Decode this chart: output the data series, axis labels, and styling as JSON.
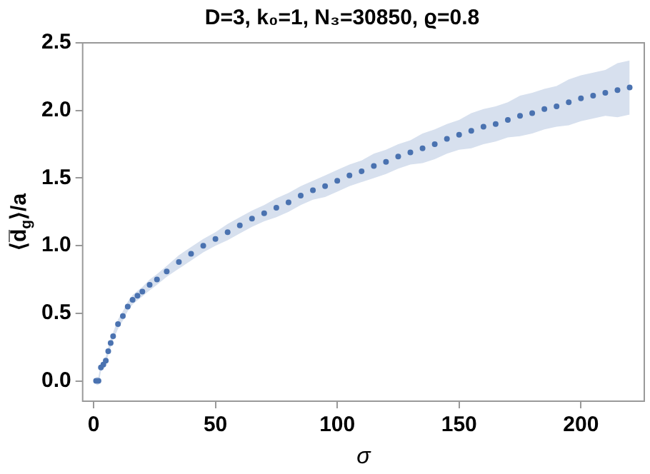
{
  "chart_data": {
    "type": "scatter",
    "title": "D=3, k₀=1, N₃=30850, ϱ=0.8",
    "xlabel": "σ",
    "ylabel": "⟨d̅$_{g}$⟩/a",
    "x": [
      1,
      2,
      3,
      4,
      5,
      6,
      7,
      8,
      10,
      12,
      14,
      16,
      18,
      20,
      23,
      26,
      30,
      35,
      40,
      45,
      50,
      55,
      60,
      65,
      70,
      75,
      80,
      85,
      90,
      95,
      100,
      105,
      110,
      115,
      120,
      125,
      130,
      135,
      140,
      145,
      150,
      155,
      160,
      165,
      170,
      175,
      180,
      185,
      190,
      195,
      200,
      205,
      210,
      215,
      220
    ],
    "series": [
      {
        "color": "#4a72b0",
        "values": [
          0,
          0,
          0.1,
          0.12,
          0.15,
          0.22,
          0.28,
          0.33,
          0.42,
          0.48,
          0.55,
          0.6,
          0.63,
          0.66,
          0.71,
          0.75,
          0.81,
          0.88,
          0.94,
          1.0,
          1.05,
          1.1,
          1.15,
          1.2,
          1.24,
          1.28,
          1.32,
          1.37,
          1.41,
          1.44,
          1.48,
          1.52,
          1.55,
          1.59,
          1.62,
          1.66,
          1.69,
          1.72,
          1.75,
          1.79,
          1.82,
          1.85,
          1.88,
          1.9,
          1.93,
          1.96,
          1.98,
          2.01,
          2.03,
          2.06,
          2.09,
          2.11,
          2.13,
          2.15,
          2.17
        ],
        "lower": [
          -0.03,
          -0.03,
          0.07,
          0.09,
          0.12,
          0.19,
          0.25,
          0.3,
          0.385,
          0.445,
          0.515,
          0.565,
          0.595,
          0.625,
          0.67,
          0.71,
          0.77,
          0.83,
          0.89,
          0.95,
          1.0,
          1.04,
          1.09,
          1.14,
          1.18,
          1.21,
          1.25,
          1.3,
          1.34,
          1.36,
          1.4,
          1.44,
          1.47,
          1.5,
          1.53,
          1.57,
          1.6,
          1.61,
          1.64,
          1.68,
          1.71,
          1.72,
          1.75,
          1.77,
          1.8,
          1.81,
          1.83,
          1.86,
          1.88,
          1.89,
          1.92,
          1.94,
          1.96,
          1.95,
          1.97
        ],
        "upper": [
          0.03,
          0.03,
          0.13,
          0.15,
          0.18,
          0.25,
          0.31,
          0.36,
          0.455,
          0.515,
          0.585,
          0.635,
          0.665,
          0.695,
          0.75,
          0.79,
          0.85,
          0.93,
          0.99,
          1.05,
          1.1,
          1.16,
          1.21,
          1.26,
          1.3,
          1.35,
          1.39,
          1.44,
          1.48,
          1.52,
          1.56,
          1.6,
          1.63,
          1.68,
          1.71,
          1.75,
          1.78,
          1.83,
          1.86,
          1.9,
          1.93,
          1.98,
          2.01,
          2.03,
          2.06,
          2.11,
          2.13,
          2.16,
          2.18,
          2.23,
          2.26,
          2.28,
          2.3,
          2.35,
          2.37
        ]
      }
    ],
    "xlim": [
      -4.5,
      226
    ],
    "xticks": [
      0,
      50,
      100,
      150,
      200
    ],
    "ylim": [
      -0.15,
      2.5
    ],
    "yticks": [
      {
        "value": 0,
        "label": "0.0"
      },
      0.5,
      {
        "value": 1,
        "label": "1.0"
      },
      1.5,
      {
        "value": 2,
        "label": "2.0"
      },
      2.5
    ],
    "grid": false,
    "legend": false,
    "marker": "circle"
  }
}
